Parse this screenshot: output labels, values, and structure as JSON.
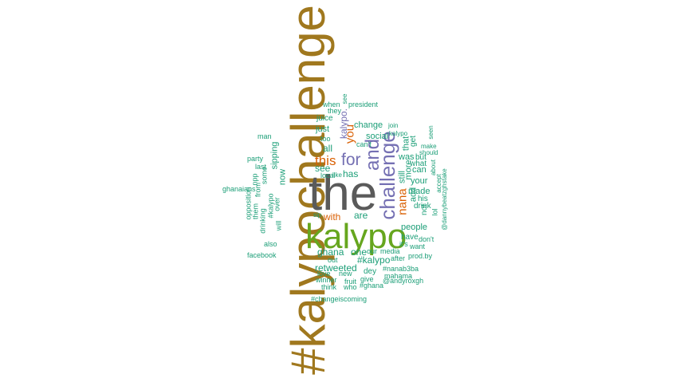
{
  "colors": {
    "brown": "#a0781e",
    "gray": "#5a5a5a",
    "green": "#66a61e",
    "purple": "#7570b3",
    "orange": "#d95f02",
    "teal": "#1b9e77"
  },
  "words": [
    {
      "id": "kalypochallenge-hashtag",
      "text": "#kalypochallenge",
      "color": "brown"
    },
    {
      "id": "the",
      "text": "the",
      "color": "gray"
    },
    {
      "id": "kalypo",
      "text": "kalypo",
      "color": "green"
    },
    {
      "id": "challenge",
      "text": "challenge",
      "color": "purple"
    },
    {
      "id": "and",
      "text": "and",
      "color": "purple"
    },
    {
      "id": "for",
      "text": "for",
      "color": "purple"
    },
    {
      "id": "this",
      "text": "this",
      "color": "orange"
    },
    {
      "id": "you",
      "text": "you",
      "color": "orange"
    },
    {
      "id": "nana",
      "text": "nana",
      "color": "orange"
    },
    {
      "id": "with",
      "text": "with",
      "color": "orange"
    },
    {
      "id": "kalypo-period",
      "text": "kalypo.",
      "color": "purple"
    },
    {
      "id": "ghana",
      "text": "ghana",
      "color": "teal"
    },
    {
      "id": "retweeted",
      "text": "retweeted",
      "color": "teal"
    },
    {
      "id": "kalypo-hashtag",
      "text": "#kalypo",
      "color": "teal"
    },
    {
      "id": "one",
      "text": "one",
      "color": "teal"
    },
    {
      "id": "are",
      "text": "are",
      "color": "teal"
    },
    {
      "id": "has",
      "text": "has",
      "color": "teal"
    },
    {
      "id": "see",
      "text": "see",
      "color": "teal"
    },
    {
      "id": "all",
      "text": "all",
      "color": "teal"
    },
    {
      "id": "just",
      "text": "just",
      "color": "teal"
    },
    {
      "id": "social",
      "text": "social",
      "color": "teal"
    },
    {
      "id": "change",
      "text": "change",
      "color": "teal"
    },
    {
      "id": "challenge-period",
      "text": "challenge.",
      "color": "teal"
    },
    {
      "id": "juice",
      "text": "juice",
      "color": "teal"
    },
    {
      "id": "now",
      "text": "now",
      "color": "teal"
    },
    {
      "id": "sipping",
      "text": "sipping",
      "color": "teal"
    },
    {
      "id": "made",
      "text": "made",
      "color": "teal"
    },
    {
      "id": "your",
      "text": "your",
      "color": "teal"
    },
    {
      "id": "can",
      "text": "can",
      "color": "teal"
    },
    {
      "id": "was",
      "text": "was",
      "color": "teal"
    },
    {
      "id": "add",
      "text": "add",
      "color": "teal"
    },
    {
      "id": "more",
      "text": "more",
      "color": "teal"
    },
    {
      "id": "still",
      "text": "still",
      "color": "teal"
    },
    {
      "id": "that",
      "text": "that",
      "color": "teal"
    },
    {
      "id": "get",
      "text": "get",
      "color": "teal"
    },
    {
      "id": "what",
      "text": "what",
      "color": "teal"
    },
    {
      "id": "but",
      "text": "but",
      "color": "teal"
    },
    {
      "id": "people",
      "text": "people",
      "color": "teal"
    },
    {
      "id": "have",
      "text": "have",
      "color": "teal"
    },
    {
      "id": "drink",
      "text": "drink",
      "color": "teal"
    },
    {
      "id": "his",
      "text": "his",
      "color": "teal"
    },
    {
      "id": "not",
      "text": "not",
      "color": "teal"
    },
    {
      "id": "lol",
      "text": "lol",
      "color": "teal"
    },
    {
      "id": "dont",
      "text": "don't",
      "color": "teal"
    },
    {
      "id": "want",
      "text": "want",
      "color": "teal"
    },
    {
      "id": "its",
      "text": "it's",
      "color": "teal"
    },
    {
      "id": "after",
      "text": "after",
      "color": "teal"
    },
    {
      "id": "prod-by",
      "text": "prod.by",
      "color": "teal"
    },
    {
      "id": "nanab3ba",
      "text": "#nanab3ba",
      "color": "teal"
    },
    {
      "id": "mahama",
      "text": "mahama",
      "color": "teal"
    },
    {
      "id": "andyroxgh",
      "text": "@andyroxgh",
      "color": "teal"
    },
    {
      "id": "media",
      "text": "media",
      "color": "teal"
    },
    {
      "id": "our",
      "text": "our",
      "color": "teal"
    },
    {
      "id": "dey",
      "text": "dey",
      "color": "teal"
    },
    {
      "id": "give",
      "text": "give",
      "color": "teal"
    },
    {
      "id": "ghana-hashtag",
      "text": "#ghana",
      "color": "teal"
    },
    {
      "id": "fruit",
      "text": "fruit",
      "color": "teal"
    },
    {
      "id": "who",
      "text": "who",
      "color": "teal"
    },
    {
      "id": "winner",
      "text": "winner",
      "color": "teal"
    },
    {
      "id": "think",
      "text": "think",
      "color": "teal"
    },
    {
      "id": "love",
      "text": "love",
      "color": "teal"
    },
    {
      "id": "new",
      "text": "new",
      "color": "teal"
    },
    {
      "id": "out",
      "text": "out",
      "color": "teal"
    },
    {
      "id": "local",
      "text": "local",
      "color": "teal"
    },
    {
      "id": "like",
      "text": "like",
      "color": "teal"
    },
    {
      "id": "sip",
      "text": "sip",
      "color": "teal"
    },
    {
      "id": "changeiscoming",
      "text": "#changeiscoming",
      "color": "teal"
    },
    {
      "id": "facebook",
      "text": "facebook",
      "color": "teal"
    },
    {
      "id": "also",
      "text": "also",
      "color": "teal"
    },
    {
      "id": "will",
      "text": "will",
      "color": "teal"
    },
    {
      "id": "ghanaians",
      "text": "ghanaians",
      "color": "teal"
    },
    {
      "id": "party",
      "text": "party",
      "color": "teal"
    },
    {
      "id": "last",
      "text": "last",
      "color": "teal"
    },
    {
      "id": "npp",
      "text": "npp",
      "color": "teal"
    },
    {
      "id": "man",
      "text": "man",
      "color": "teal"
    },
    {
      "id": "some",
      "text": "some",
      "color": "teal"
    },
    {
      "id": "from",
      "text": "from",
      "color": "teal"
    },
    {
      "id": "opposition",
      "text": "opposition",
      "color": "teal"
    },
    {
      "id": "them",
      "text": "them",
      "color": "teal"
    },
    {
      "id": "drinking",
      "text": "drinking",
      "color": "teal"
    },
    {
      "id": "kalypo-hashtag-2",
      "text": "#kalypo",
      "color": "teal"
    },
    {
      "id": "over",
      "text": "over",
      "color": "teal"
    },
    {
      "id": "when",
      "text": "when",
      "color": "teal"
    },
    {
      "id": "they",
      "text": "they",
      "color": "teal"
    },
    {
      "id": "president",
      "text": "president",
      "color": "teal"
    },
    {
      "id": "join",
      "text": "join",
      "color": "teal"
    },
    {
      "id": "too",
      "text": "too",
      "color": "teal"
    },
    {
      "id": "cant",
      "text": "can't",
      "color": "teal"
    },
    {
      "id": "kalypo-small",
      "text": "kalypo",
      "color": "teal"
    },
    {
      "id": "see-small",
      "text": "see",
      "color": "teal"
    },
    {
      "id": "make",
      "text": "make",
      "color": "teal"
    },
    {
      "id": "should",
      "text": "should",
      "color": "teal"
    },
    {
      "id": "seen",
      "text": "seen",
      "color": "teal"
    },
    {
      "id": "about",
      "text": "about",
      "color": "teal"
    },
    {
      "id": "accept",
      "text": "accept",
      "color": "teal"
    },
    {
      "id": "dannybeatzghstake",
      "text": "@dannybeatzghstake",
      "color": "teal"
    }
  ]
}
